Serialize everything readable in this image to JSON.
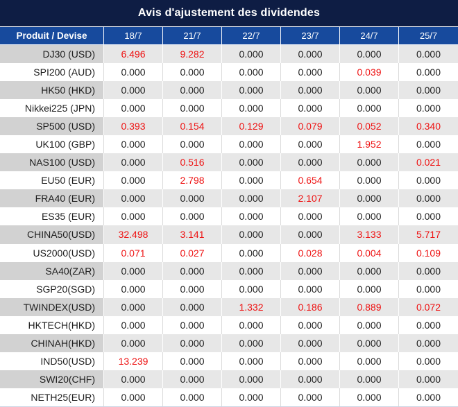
{
  "title": "Avis d'ajustement des dividendes",
  "columns": {
    "product": "Produit / Devise",
    "dates": [
      "18/7",
      "21/7",
      "22/7",
      "23/7",
      "24/7",
      "25/7"
    ]
  },
  "rows": [
    {
      "product": "DJ30 (USD)",
      "values": [
        "6.496",
        "9.282",
        "0.000",
        "0.000",
        "0.000",
        "0.000"
      ]
    },
    {
      "product": "SPI200 (AUD)",
      "values": [
        "0.000",
        "0.000",
        "0.000",
        "0.000",
        "0.039",
        "0.000"
      ]
    },
    {
      "product": "HK50 (HKD)",
      "values": [
        "0.000",
        "0.000",
        "0.000",
        "0.000",
        "0.000",
        "0.000"
      ]
    },
    {
      "product": "Nikkei225 (JPN)",
      "values": [
        "0.000",
        "0.000",
        "0.000",
        "0.000",
        "0.000",
        "0.000"
      ]
    },
    {
      "product": "SP500 (USD)",
      "values": [
        "0.393",
        "0.154",
        "0.129",
        "0.079",
        "0.052",
        "0.340"
      ]
    },
    {
      "product": "UK100 (GBP)",
      "values": [
        "0.000",
        "0.000",
        "0.000",
        "0.000",
        "1.952",
        "0.000"
      ]
    },
    {
      "product": "NAS100 (USD)",
      "values": [
        "0.000",
        "0.516",
        "0.000",
        "0.000",
        "0.000",
        "0.021"
      ]
    },
    {
      "product": "EU50 (EUR)",
      "values": [
        "0.000",
        "2.798",
        "0.000",
        "0.654",
        "0.000",
        "0.000"
      ]
    },
    {
      "product": "FRA40 (EUR)",
      "values": [
        "0.000",
        "0.000",
        "0.000",
        "2.107",
        "0.000",
        "0.000"
      ]
    },
    {
      "product": "ES35 (EUR)",
      "values": [
        "0.000",
        "0.000",
        "0.000",
        "0.000",
        "0.000",
        "0.000"
      ]
    },
    {
      "product": "CHINA50(USD)",
      "values": [
        "32.498",
        "3.141",
        "0.000",
        "0.000",
        "3.133",
        "5.717"
      ]
    },
    {
      "product": "US2000(USD)",
      "values": [
        "0.071",
        "0.027",
        "0.000",
        "0.028",
        "0.004",
        "0.109"
      ]
    },
    {
      "product": "SA40(ZAR)",
      "values": [
        "0.000",
        "0.000",
        "0.000",
        "0.000",
        "0.000",
        "0.000"
      ]
    },
    {
      "product": "SGP20(SGD)",
      "values": [
        "0.000",
        "0.000",
        "0.000",
        "0.000",
        "0.000",
        "0.000"
      ]
    },
    {
      "product": "TWINDEX(USD)",
      "values": [
        "0.000",
        "0.000",
        "1.332",
        "0.186",
        "0.889",
        "0.072"
      ]
    },
    {
      "product": "HKTECH(HKD)",
      "values": [
        "0.000",
        "0.000",
        "0.000",
        "0.000",
        "0.000",
        "0.000"
      ]
    },
    {
      "product": "CHINAH(HKD)",
      "values": [
        "0.000",
        "0.000",
        "0.000",
        "0.000",
        "0.000",
        "0.000"
      ]
    },
    {
      "product": "IND50(USD)",
      "values": [
        "13.239",
        "0.000",
        "0.000",
        "0.000",
        "0.000",
        "0.000"
      ]
    },
    {
      "product": "SWI20(CHF)",
      "values": [
        "0.000",
        "0.000",
        "0.000",
        "0.000",
        "0.000",
        "0.000"
      ]
    },
    {
      "product": "NETH25(EUR)",
      "values": [
        "0.000",
        "0.000",
        "0.000",
        "0.000",
        "0.000",
        "0.000"
      ]
    }
  ],
  "colors": {
    "title_bg": "#0e1d44",
    "header_bg": "#174a9d",
    "shaded_product_bg": "#d2d2d2",
    "shaded_value_bg": "#e7e7e7",
    "zero_text": "#1d1d1d",
    "nonzero_text": "#ee1111"
  }
}
